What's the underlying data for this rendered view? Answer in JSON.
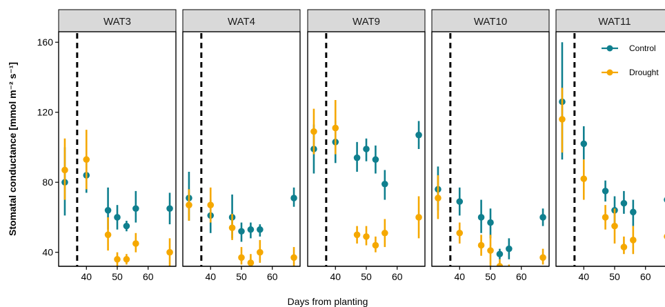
{
  "chart_data": {
    "type": "scatter",
    "subtype": "faceted point-range (mean with error bars)",
    "xlabel": "Days from planting",
    "ylabel": "Stomatal conductance [mmol m⁻² s⁻¹]",
    "xlim": [
      31,
      69
    ],
    "ylim": [
      32,
      166
    ],
    "x_ticks": [
      40,
      50,
      60
    ],
    "y_ticks": [
      40,
      80,
      120,
      160
    ],
    "reference_line": {
      "x": 37,
      "style": "dashed"
    },
    "grid": false,
    "legend_position": "top-right",
    "colors": {
      "Control": "#0f7f8e",
      "Drought": "#f5a800"
    },
    "panels": [
      {
        "title": "WAT3",
        "series": [
          {
            "name": "Control",
            "points": [
              {
                "x": 33,
                "y": 80,
                "low": 61,
                "high": 100
              },
              {
                "x": 40,
                "y": 84,
                "low": 74,
                "high": 95
              },
              {
                "x": 47,
                "y": 64,
                "low": 53,
                "high": 77
              },
              {
                "x": 50,
                "y": 60,
                "low": 53,
                "high": 67
              },
              {
                "x": 53,
                "y": 55,
                "low": 52,
                "high": 58
              },
              {
                "x": 56,
                "y": 65,
                "low": 57,
                "high": 75
              },
              {
                "x": 67,
                "y": 65,
                "low": 56,
                "high": 74
              }
            ]
          },
          {
            "name": "Drought",
            "points": [
              {
                "x": 33,
                "y": 87,
                "low": 70,
                "high": 105
              },
              {
                "x": 40,
                "y": 93,
                "low": 76,
                "high": 110
              },
              {
                "x": 47,
                "y": 50,
                "low": 41,
                "high": 60
              },
              {
                "x": 50,
                "y": 36,
                "low": 32,
                "high": 40
              },
              {
                "x": 53,
                "y": 36,
                "low": 33,
                "high": 39
              },
              {
                "x": 56,
                "y": 45,
                "low": 40,
                "high": 51
              },
              {
                "x": 67,
                "y": 40,
                "low": 32,
                "high": 48
              }
            ]
          }
        ]
      },
      {
        "title": "WAT4",
        "series": [
          {
            "name": "Control",
            "points": [
              {
                "x": 33,
                "y": 71,
                "low": 58,
                "high": 86
              },
              {
                "x": 40,
                "y": 61,
                "low": 51,
                "high": 70
              },
              {
                "x": 47,
                "y": 60,
                "low": 48,
                "high": 73
              },
              {
                "x": 50,
                "y": 52,
                "low": 46,
                "high": 57
              },
              {
                "x": 53,
                "y": 53,
                "low": 48,
                "high": 57
              },
              {
                "x": 56,
                "y": 53,
                "low": 49,
                "high": 56
              },
              {
                "x": 67,
                "y": 71,
                "low": 66,
                "high": 77
              }
            ]
          },
          {
            "name": "Drought",
            "points": [
              {
                "x": 33,
                "y": 67,
                "low": 58,
                "high": 76
              },
              {
                "x": 40,
                "y": 67,
                "low": 57,
                "high": 77
              },
              {
                "x": 47,
                "y": 54,
                "low": 47,
                "high": 62
              },
              {
                "x": 50,
                "y": 37,
                "low": 33,
                "high": 43
              },
              {
                "x": 53,
                "y": 34,
                "low": 29,
                "high": 39
              },
              {
                "x": 56,
                "y": 40,
                "low": 34,
                "high": 47
              },
              {
                "x": 67,
                "y": 37,
                "low": 32,
                "high": 43
              }
            ]
          }
        ]
      },
      {
        "title": "WAT9",
        "series": [
          {
            "name": "Control",
            "points": [
              {
                "x": 33,
                "y": 99,
                "low": 85,
                "high": 113
              },
              {
                "x": 40,
                "y": 103,
                "low": 91,
                "high": 115
              },
              {
                "x": 47,
                "y": 94,
                "low": 86,
                "high": 103
              },
              {
                "x": 50,
                "y": 99,
                "low": 92,
                "high": 105
              },
              {
                "x": 53,
                "y": 93,
                "low": 85,
                "high": 101
              },
              {
                "x": 56,
                "y": 79,
                "low": 70,
                "high": 87
              },
              {
                "x": 67,
                "y": 107,
                "low": 99,
                "high": 115
              }
            ]
          },
          {
            "name": "Drought",
            "points": [
              {
                "x": 33,
                "y": 109,
                "low": 96,
                "high": 122
              },
              {
                "x": 40,
                "y": 111,
                "low": 96,
                "high": 127
              },
              {
                "x": 47,
                "y": 50,
                "low": 45,
                "high": 55
              },
              {
                "x": 50,
                "y": 49,
                "low": 44,
                "high": 55
              },
              {
                "x": 53,
                "y": 44,
                "low": 40,
                "high": 49
              },
              {
                "x": 56,
                "y": 51,
                "low": 43,
                "high": 59
              },
              {
                "x": 67,
                "y": 60,
                "low": 48,
                "high": 72
              }
            ]
          }
        ]
      },
      {
        "title": "WAT10",
        "series": [
          {
            "name": "Control",
            "points": [
              {
                "x": 33,
                "y": 76,
                "low": 64,
                "high": 89
              },
              {
                "x": 40,
                "y": 69,
                "low": 61,
                "high": 77
              },
              {
                "x": 47,
                "y": 60,
                "low": 51,
                "high": 70
              },
              {
                "x": 50,
                "y": 57,
                "low": 48,
                "high": 65
              },
              {
                "x": 53,
                "y": 39,
                "low": 36,
                "high": 42
              },
              {
                "x": 56,
                "y": 42,
                "low": 36,
                "high": 48
              },
              {
                "x": 67,
                "y": 60,
                "low": 55,
                "high": 65
              }
            ]
          },
          {
            "name": "Drought",
            "points": [
              {
                "x": 33,
                "y": 71,
                "low": 59,
                "high": 84
              },
              {
                "x": 40,
                "y": 51,
                "low": 45,
                "high": 57
              },
              {
                "x": 47,
                "y": 44,
                "low": 38,
                "high": 50
              },
              {
                "x": 50,
                "y": 41,
                "low": 31,
                "high": 50
              },
              {
                "x": 53,
                "y": 32,
                "low": 29,
                "high": 36
              },
              {
                "x": 56,
                "y": 29,
                "low": 25,
                "high": 33
              },
              {
                "x": 67,
                "y": 37,
                "low": 33,
                "high": 42
              }
            ]
          }
        ]
      },
      {
        "title": "WAT11",
        "series": [
          {
            "name": "Control",
            "points": [
              {
                "x": 33,
                "y": 126,
                "low": 93,
                "high": 160
              },
              {
                "x": 40,
                "y": 102,
                "low": 93,
                "high": 112
              },
              {
                "x": 47,
                "y": 75,
                "low": 69,
                "high": 81
              },
              {
                "x": 50,
                "y": 64,
                "low": 56,
                "high": 72
              },
              {
                "x": 53,
                "y": 68,
                "low": 62,
                "high": 75
              },
              {
                "x": 56,
                "y": 63,
                "low": 55,
                "high": 70
              },
              {
                "x": 67,
                "y": 70,
                "low": 64,
                "high": 76
              }
            ]
          },
          {
            "name": "Drought",
            "points": [
              {
                "x": 33,
                "y": 116,
                "low": 97,
                "high": 134
              },
              {
                "x": 40,
                "y": 82,
                "low": 70,
                "high": 93
              },
              {
                "x": 47,
                "y": 60,
                "low": 53,
                "high": 67
              },
              {
                "x": 50,
                "y": 55,
                "low": 45,
                "high": 65
              },
              {
                "x": 53,
                "y": 43,
                "low": 39,
                "high": 49
              },
              {
                "x": 56,
                "y": 47,
                "low": 39,
                "high": 55
              },
              {
                "x": 67,
                "y": 49,
                "low": 44,
                "high": 55
              }
            ]
          }
        ]
      }
    ]
  }
}
